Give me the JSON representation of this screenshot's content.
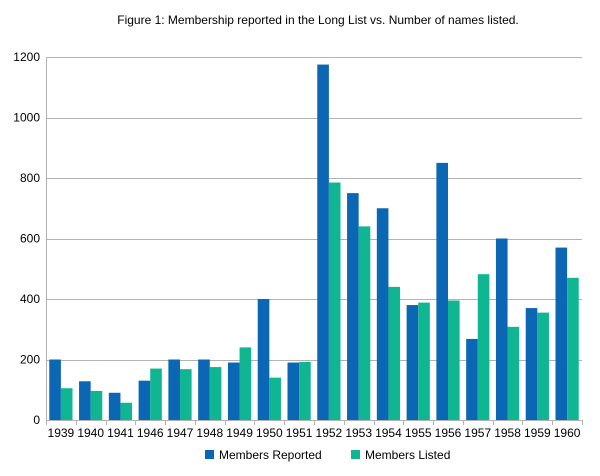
{
  "chart_data": {
    "type": "bar",
    "title": "Figure 1: Membership reported in the Long List vs. Number of names listed.",
    "xlabel": "",
    "ylabel": "",
    "categories": [
      "1939",
      "1940",
      "1941",
      "1946",
      "1947",
      "1948",
      "1949",
      "1950",
      "1951",
      "1952",
      "1953",
      "1954",
      "1955",
      "1956",
      "1957",
      "1958",
      "1959",
      "1960"
    ],
    "series": [
      {
        "name": "Members Reported",
        "color": "#0b66b3",
        "values": [
          200,
          128,
          90,
          130,
          200,
          200,
          190,
          400,
          190,
          1175,
          750,
          700,
          380,
          850,
          268,
          600,
          370,
          570
        ]
      },
      {
        "name": "Members Listed",
        "color": "#10b592",
        "values": [
          105,
          96,
          57,
          170,
          168,
          175,
          240,
          140,
          192,
          785,
          640,
          440,
          388,
          395,
          482,
          308,
          355,
          470
        ]
      }
    ],
    "ylim": [
      0,
      1200
    ],
    "yticks": [
      0,
      200,
      400,
      600,
      800,
      1000,
      1200
    ],
    "grid": true,
    "legend_position": "bottom"
  }
}
